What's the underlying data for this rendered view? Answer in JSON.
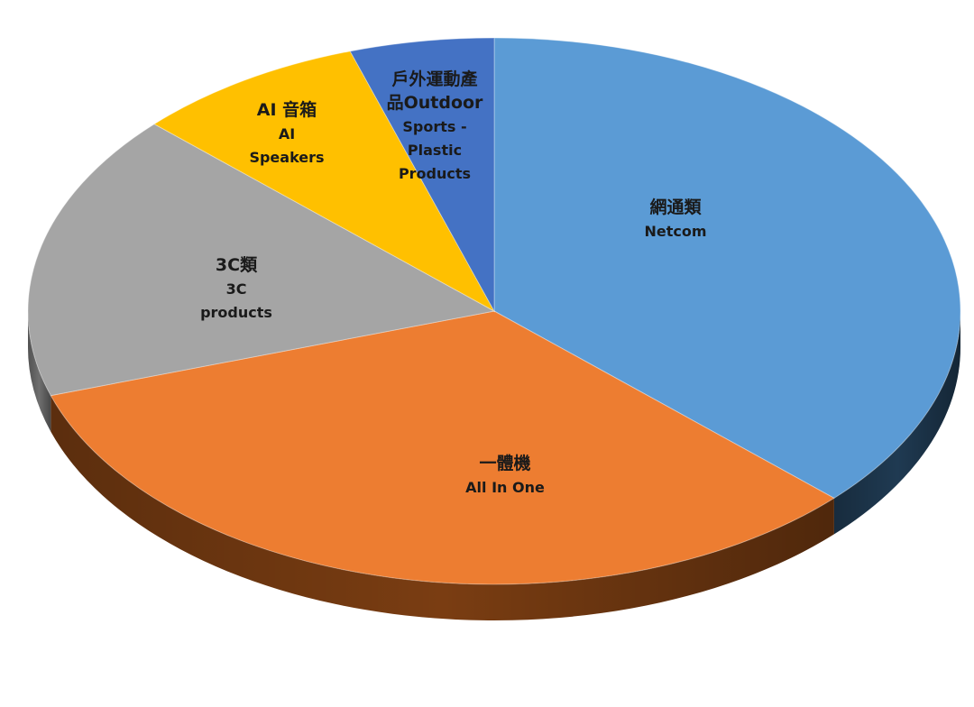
{
  "chart_data": {
    "type": "pie",
    "title": "",
    "style": "3d-tilted",
    "slices": [
      {
        "label_zh": "網通類",
        "label_en": "Netcom",
        "lines": [
          "網通類",
          "Netcom"
        ],
        "value": 37,
        "color": "#5b9bd5",
        "side_color": "#1f3a52"
      },
      {
        "label_zh": "一體機",
        "label_en": "All In One",
        "lines": [
          "一體機",
          "All In One"
        ],
        "value": 33,
        "color": "#ed7d31",
        "side_color": "#7a3d12"
      },
      {
        "label_zh": "3C類",
        "label_en": "3C products",
        "lines": [
          "3C類",
          "3C",
          "products"
        ],
        "value": 17,
        "color": "#a5a5a5",
        "side_color": "#6e6e6e"
      },
      {
        "label_zh": "AI 音箱",
        "label_en": "AI Speakers",
        "lines": [
          "AI 音箱",
          "AI",
          "Speakers"
        ],
        "value": 8,
        "color": "#ffc000",
        "side_color": "#8a6800"
      },
      {
        "label_zh": "戶外運動產品",
        "label_en": "Outdoor Sports - Plastic Products",
        "lines": [
          "戶外運動產",
          "品Outdoor",
          "Sports -",
          "Plastic",
          "Products"
        ],
        "value": 5,
        "color": "#4472c4",
        "side_color": "#243c66"
      }
    ]
  }
}
